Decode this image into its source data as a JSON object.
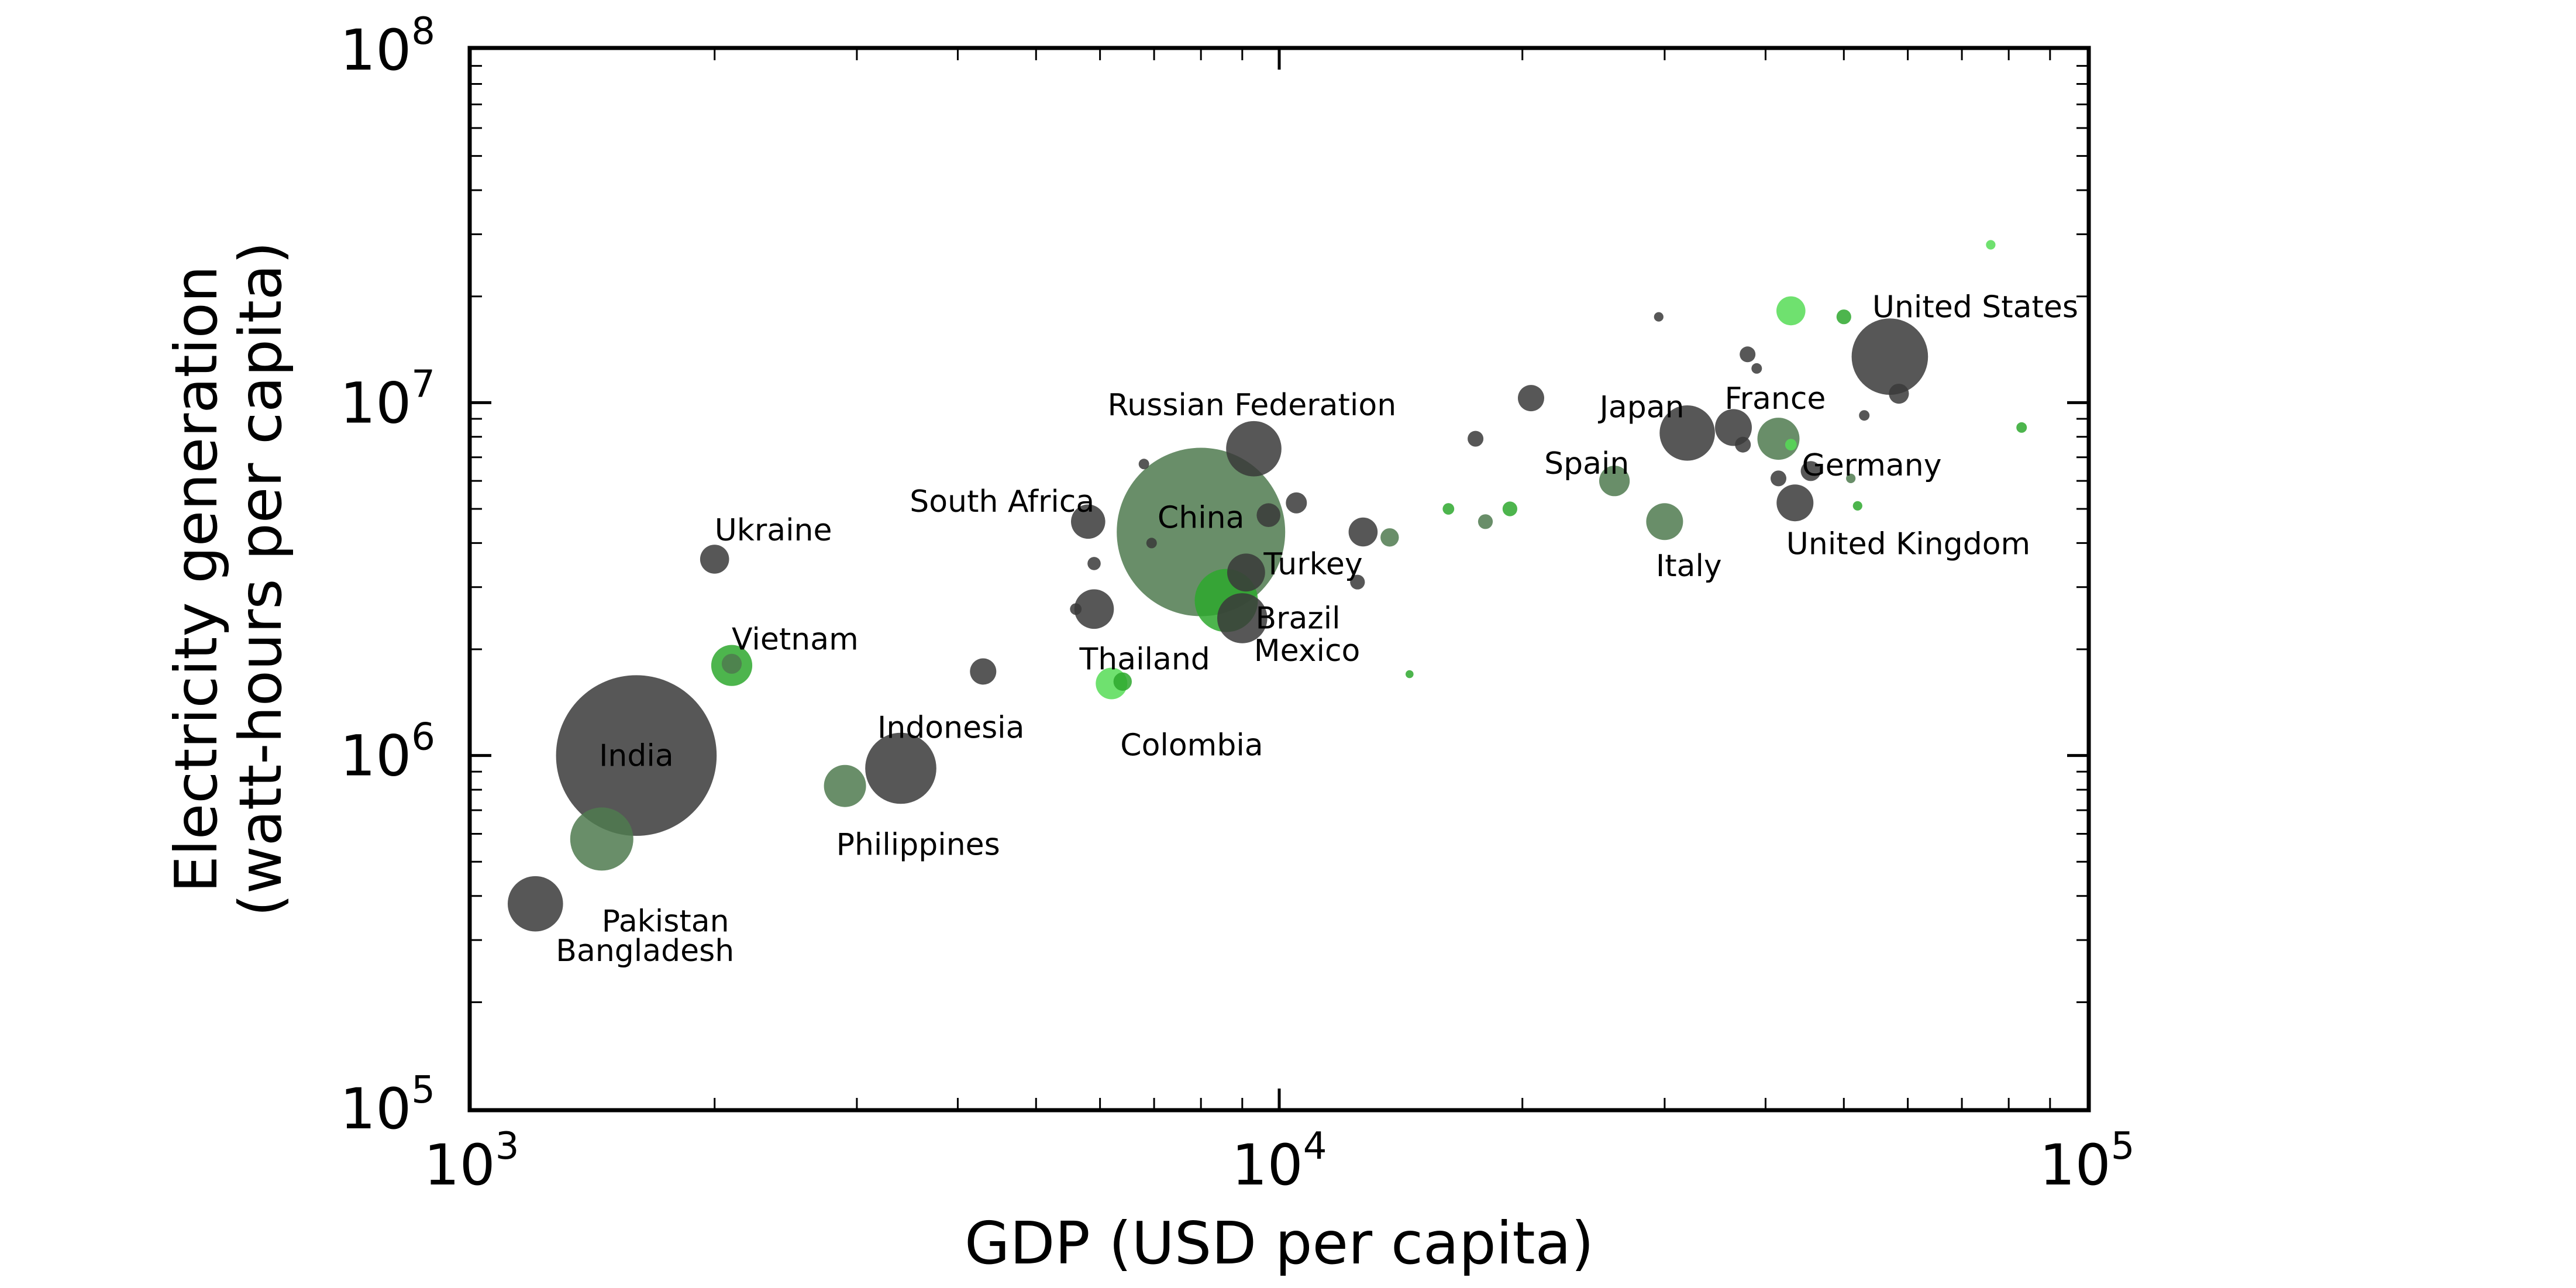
{
  "chart_data": {
    "type": "scatter",
    "xlabel": "GDP (USD per capita)",
    "ylabel_line1": "Electricity generation",
    "ylabel_line2": "(watt-hours per capita)",
    "xscale": "log",
    "yscale": "log",
    "xlim": [
      1000,
      100000
    ],
    "ylim": [
      100000,
      100000000
    ],
    "x_ticks": [
      {
        "value": 1000,
        "base": "10",
        "exp": "3"
      },
      {
        "value": 10000,
        "base": "10",
        "exp": "4"
      },
      {
        "value": 100000,
        "base": "10",
        "exp": "5"
      }
    ],
    "y_ticks": [
      {
        "value": 100000,
        "base": "10",
        "exp": "5"
      },
      {
        "value": 1000000,
        "base": "10",
        "exp": "6"
      },
      {
        "value": 10000000,
        "base": "10",
        "exp": "7"
      },
      {
        "value": 100000000,
        "base": "10",
        "exp": "8"
      }
    ],
    "grid": false,
    "colors": {
      "dark": "#3a3a3a",
      "mid": "#4f7a4f",
      "green": "#2ea82e",
      "light": "#56dc56"
    },
    "points": [
      {
        "label": "India",
        "x": 1600,
        "y": 1000000,
        "size": 3.05,
        "color": "dark"
      },
      {
        "label": "China",
        "x": 8000,
        "y": 4300000,
        "size": 3.2,
        "color": "mid"
      },
      {
        "label": "United States",
        "x": 57000,
        "y": 13500000,
        "size": 1.45,
        "color": "dark"
      },
      {
        "label": "Russian Federation",
        "x": 9300,
        "y": 7400000,
        "size": 1.05,
        "color": "dark"
      },
      {
        "label": "Japan",
        "x": 32000,
        "y": 8200000,
        "size": 1.05,
        "color": "dark"
      },
      {
        "label": "France",
        "x": 36500,
        "y": 8500000,
        "size": 0.7,
        "color": "dark"
      },
      {
        "label": "Germany",
        "x": 41500,
        "y": 7900000,
        "size": 0.8,
        "color": "mid"
      },
      {
        "label": "United Kingdom",
        "x": 43500,
        "y": 5200000,
        "size": 0.7,
        "color": "dark"
      },
      {
        "label": "Italy",
        "x": 30000,
        "y": 4600000,
        "size": 0.7,
        "color": "mid"
      },
      {
        "label": "Spain",
        "x": 26000,
        "y": 6000000,
        "size": 0.58,
        "color": "mid"
      },
      {
        "label": "South Africa",
        "x": 5800,
        "y": 4600000,
        "size": 0.65,
        "color": "dark"
      },
      {
        "label": "Ukraine",
        "x": 2000,
        "y": 3600000,
        "size": 0.55,
        "color": "dark"
      },
      {
        "label": "Vietnam",
        "x": 2100,
        "y": 1800000,
        "size": 0.78,
        "color": "green"
      },
      {
        "label": "Indonesia",
        "x": 3400,
        "y": 920000,
        "size": 1.35,
        "color": "dark"
      },
      {
        "label": "Philippines",
        "x": 2900,
        "y": 820000,
        "size": 0.8,
        "color": "mid"
      },
      {
        "label": "Pakistan",
        "x": 1450,
        "y": 580000,
        "size": 1.2,
        "color": "mid"
      },
      {
        "label": "Bangladesh",
        "x": 1200,
        "y": 380000,
        "size": 1.05,
        "color": "dark"
      },
      {
        "label": "Thailand",
        "x": 5900,
        "y": 2600000,
        "size": 0.75,
        "color": "dark"
      },
      {
        "label": "Turkey",
        "x": 9100,
        "y": 3300000,
        "size": 0.72,
        "color": "dark"
      },
      {
        "label": "Brazil",
        "x": 8600,
        "y": 2750000,
        "size": 1.2,
        "color": "green"
      },
      {
        "label": "Mexico",
        "x": 9000,
        "y": 2450000,
        "size": 0.95,
        "color": "dark"
      },
      {
        "label": "Colombia",
        "x": 6200,
        "y": 1600000,
        "size": 0.6,
        "color": "light"
      },
      {
        "label": "",
        "x": 20500,
        "y": 10300000,
        "size": 0.5,
        "color": "dark"
      },
      {
        "label": "",
        "x": 17500,
        "y": 7900000,
        "size": 0.3,
        "color": "dark"
      },
      {
        "label": "",
        "x": 10500,
        "y": 5200000,
        "size": 0.4,
        "color": "dark"
      },
      {
        "label": "",
        "x": 9700,
        "y": 4800000,
        "size": 0.45,
        "color": "dark"
      },
      {
        "label": "",
        "x": 12700,
        "y": 4300000,
        "size": 0.55,
        "color": "dark"
      },
      {
        "label": "",
        "x": 13700,
        "y": 4150000,
        "size": 0.35,
        "color": "mid"
      },
      {
        "label": "",
        "x": 12500,
        "y": 3100000,
        "size": 0.28,
        "color": "dark"
      },
      {
        "label": "",
        "x": 14500,
        "y": 1700000,
        "size": 0.15,
        "color": "green"
      },
      {
        "label": "",
        "x": 16200,
        "y": 5000000,
        "size": 0.22,
        "color": "green"
      },
      {
        "label": "",
        "x": 18000,
        "y": 4600000,
        "size": 0.28,
        "color": "mid"
      },
      {
        "label": "",
        "x": 19300,
        "y": 5000000,
        "size": 0.28,
        "color": "green"
      },
      {
        "label": "",
        "x": 4300,
        "y": 1730000,
        "size": 0.5,
        "color": "dark"
      },
      {
        "label": "",
        "x": 6800,
        "y": 6700000,
        "size": 0.2,
        "color": "dark"
      },
      {
        "label": "",
        "x": 6950,
        "y": 4000000,
        "size": 0.2,
        "color": "dark"
      },
      {
        "label": "",
        "x": 5900,
        "y": 3500000,
        "size": 0.25,
        "color": "dark"
      },
      {
        "label": "",
        "x": 5600,
        "y": 2600000,
        "size": 0.22,
        "color": "dark"
      },
      {
        "label": "",
        "x": 6400,
        "y": 1620000,
        "size": 0.35,
        "color": "green"
      },
      {
        "label": "",
        "x": 2100,
        "y": 1820000,
        "size": 0.38,
        "color": "mid"
      },
      {
        "label": "",
        "x": 29500,
        "y": 17500000,
        "size": 0.18,
        "color": "dark"
      },
      {
        "label": "",
        "x": 38000,
        "y": 13700000,
        "size": 0.3,
        "color": "dark"
      },
      {
        "label": "",
        "x": 39000,
        "y": 12500000,
        "size": 0.2,
        "color": "dark"
      },
      {
        "label": "",
        "x": 43000,
        "y": 18200000,
        "size": 0.55,
        "color": "light"
      },
      {
        "label": "",
        "x": 50000,
        "y": 17500000,
        "size": 0.28,
        "color": "green"
      },
      {
        "label": "",
        "x": 76000,
        "y": 28000000,
        "size": 0.18,
        "color": "light"
      },
      {
        "label": "",
        "x": 58500,
        "y": 10600000,
        "size": 0.38,
        "color": "dark"
      },
      {
        "label": "",
        "x": 53000,
        "y": 9200000,
        "size": 0.2,
        "color": "dark"
      },
      {
        "label": "",
        "x": 43000,
        "y": 7600000,
        "size": 0.22,
        "color": "light"
      },
      {
        "label": "",
        "x": 45500,
        "y": 6400000,
        "size": 0.38,
        "color": "dark"
      },
      {
        "label": "",
        "x": 41500,
        "y": 6100000,
        "size": 0.3,
        "color": "dark"
      },
      {
        "label": "",
        "x": 51000,
        "y": 6100000,
        "size": 0.18,
        "color": "mid"
      },
      {
        "label": "",
        "x": 52000,
        "y": 5100000,
        "size": 0.18,
        "color": "green"
      },
      {
        "label": "",
        "x": 37500,
        "y": 7600000,
        "size": 0.3,
        "color": "dark"
      },
      {
        "label": "",
        "x": 83000,
        "y": 8500000,
        "size": 0.2,
        "color": "green"
      }
    ]
  }
}
